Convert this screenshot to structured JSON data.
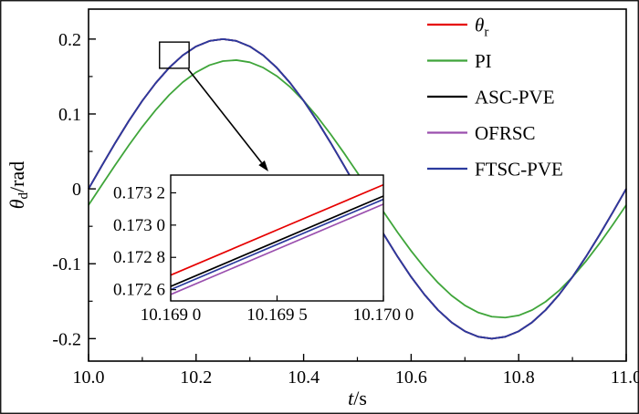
{
  "figure": {
    "background": "#ffffff",
    "border_color": "#000000"
  },
  "axis_labels": {
    "x": {
      "main": "t",
      "rest": "/s"
    },
    "y": {
      "main": "θ",
      "sub": "d",
      "rest": "/rad"
    }
  },
  "legend": {
    "items": [
      {
        "main": "θ",
        "sub": "r",
        "color": "#e60000"
      },
      {
        "main": "PI",
        "sub": "",
        "color": "#3fa53a"
      },
      {
        "main": "ASC-PVE",
        "sub": "",
        "color": "#000000"
      },
      {
        "main": "OFRSC",
        "sub": "",
        "color": "#9a4fae"
      },
      {
        "main": "FTSC-PVE",
        "sub": "",
        "color": "#2b3a9e"
      }
    ]
  },
  "chart_data": {
    "type": "line",
    "title": "",
    "xlabel": "t/s",
    "ylabel": "θd/rad",
    "xlim": [
      10.0,
      11.0
    ],
    "ylim": [
      -0.23,
      0.24
    ],
    "grid": false,
    "legend_position": "upper-right",
    "x_tick_values": [
      10.0,
      10.2,
      10.4,
      10.6,
      10.8,
      11.0
    ],
    "x_tick_labels": [
      "10.0",
      "10.2",
      "10.4",
      "10.6",
      "10.8",
      "11.0"
    ],
    "x_minor_ticks": [
      10.1,
      10.3,
      10.5,
      10.7,
      10.9
    ],
    "y_tick_values": [
      0.2,
      0.1,
      0,
      -0.1,
      -0.2
    ],
    "y_tick_labels": [
      "0.2",
      "0.1",
      "0",
      "-0.1",
      "-0.2"
    ],
    "y_minor_ticks": [
      0.15,
      0.05,
      -0.05,
      -0.15
    ],
    "x": [
      10.0,
      10.025,
      10.05,
      10.075,
      10.1,
      10.125,
      10.15,
      10.175,
      10.2,
      10.225,
      10.25,
      10.275,
      10.3,
      10.325,
      10.35,
      10.375,
      10.4,
      10.425,
      10.45,
      10.475,
      10.5,
      10.525,
      10.55,
      10.575,
      10.6,
      10.625,
      10.65,
      10.675,
      10.7,
      10.725,
      10.75,
      10.775,
      10.8,
      10.825,
      10.85,
      10.875,
      10.9,
      10.925,
      10.95,
      10.975,
      11.0
    ],
    "series": [
      {
        "name": "θr",
        "color": "#e60000",
        "width": 1.8,
        "values": [
          0,
          0.0313,
          0.0618,
          0.0908,
          0.1176,
          0.1414,
          0.1618,
          0.1782,
          0.1902,
          0.1975,
          0.2,
          0.1975,
          0.1902,
          0.1782,
          0.1618,
          0.1414,
          0.1176,
          0.0908,
          0.0618,
          0.0313,
          0,
          -0.0313,
          -0.0618,
          -0.0908,
          -0.1176,
          -0.1414,
          -0.1618,
          -0.1782,
          -0.1902,
          -0.1975,
          -0.2,
          -0.1975,
          -0.1902,
          -0.1782,
          -0.1618,
          -0.1414,
          -0.1176,
          -0.0908,
          -0.0618,
          -0.0313,
          0
        ]
      },
      {
        "name": "PI",
        "color": "#3fa53a",
        "width": 1.8,
        "values": [
          -0.0216,
          0.0054,
          0.0322,
          0.0583,
          0.0829,
          0.1054,
          0.1254,
          0.1423,
          0.1556,
          0.1652,
          0.1706,
          0.1719,
          0.169,
          0.1618,
          0.1507,
          0.1359,
          0.1177,
          0.0967,
          0.0732,
          0.048,
          0.0216,
          -0.0054,
          -0.0322,
          -0.0583,
          -0.0829,
          -0.1054,
          -0.1254,
          -0.1423,
          -0.1556,
          -0.1652,
          -0.1706,
          -0.1719,
          -0.169,
          -0.1618,
          -0.1507,
          -0.1359,
          -0.1177,
          -0.0967,
          -0.0732,
          -0.048,
          -0.0216
        ]
      },
      {
        "name": "ASC-PVE",
        "color": "#000000",
        "width": 1.8,
        "values": [
          0,
          0.0313,
          0.0618,
          0.0908,
          0.1176,
          0.1414,
          0.1618,
          0.1782,
          0.1902,
          0.1975,
          0.2,
          0.1975,
          0.1902,
          0.1782,
          0.1618,
          0.1414,
          0.1176,
          0.0908,
          0.0618,
          0.0313,
          0,
          -0.0313,
          -0.0618,
          -0.0908,
          -0.1176,
          -0.1414,
          -0.1618,
          -0.1782,
          -0.1902,
          -0.1975,
          -0.2,
          -0.1975,
          -0.1902,
          -0.1782,
          -0.1618,
          -0.1414,
          -0.1176,
          -0.0908,
          -0.0618,
          -0.0313,
          0
        ]
      },
      {
        "name": "OFRSC",
        "color": "#9a4fae",
        "width": 1.8,
        "values": [
          0,
          0.0313,
          0.0618,
          0.0908,
          0.1176,
          0.1414,
          0.1618,
          0.1782,
          0.1902,
          0.1975,
          0.2,
          0.1975,
          0.1902,
          0.1782,
          0.1618,
          0.1414,
          0.1176,
          0.0908,
          0.0618,
          0.0313,
          0,
          -0.0313,
          -0.0618,
          -0.0908,
          -0.1176,
          -0.1414,
          -0.1618,
          -0.1782,
          -0.1902,
          -0.1975,
          -0.2,
          -0.1975,
          -0.1902,
          -0.1782,
          -0.1618,
          -0.1414,
          -0.1176,
          -0.0908,
          -0.0618,
          -0.0313,
          0
        ]
      },
      {
        "name": "FTSC-PVE",
        "color": "#2b3a9e",
        "width": 1.8,
        "values": [
          0,
          0.0313,
          0.0618,
          0.0908,
          0.1176,
          0.1414,
          0.1618,
          0.1782,
          0.1902,
          0.1975,
          0.2,
          0.1975,
          0.1902,
          0.1782,
          0.1618,
          0.1414,
          0.1176,
          0.0908,
          0.0618,
          0.0313,
          0,
          -0.0313,
          -0.0618,
          -0.0908,
          -0.1176,
          -0.1414,
          -0.1618,
          -0.1782,
          -0.1902,
          -0.1975,
          -0.2,
          -0.1975,
          -0.1902,
          -0.1782,
          -0.1618,
          -0.1414,
          -0.1176,
          -0.0908,
          -0.0618,
          -0.0313,
          0
        ]
      }
    ],
    "zoom_rect": {
      "x0": 10.132,
      "x1": 10.187,
      "y0": 0.161,
      "y1": 0.196
    },
    "inset": {
      "xlim": [
        10.169,
        10.17
      ],
      "ylim": [
        0.17253,
        0.17331
      ],
      "x_tick_values": [
        10.169,
        10.1695,
        10.17
      ],
      "x_tick_labels": [
        "10.169 0",
        "10.169 5",
        "10.170 0"
      ],
      "y_tick_values": [
        0.1726,
        0.1728,
        0.173,
        0.1732
      ],
      "y_tick_labels": [
        "0.172 6",
        "0.172 8",
        "0.173 0",
        "0.173 2"
      ],
      "x": [
        10.169,
        10.1695,
        10.17
      ],
      "series": [
        {
          "name": "OFRSC",
          "color": "#9a4fae",
          "values": [
            0.17257,
            0.17285,
            0.17313
          ]
        },
        {
          "name": "FTSC-PVE",
          "color": "#2b3a9e",
          "values": [
            0.1726,
            0.17288,
            0.17316
          ]
        },
        {
          "name": "ASC-PVE",
          "color": "#000000",
          "values": [
            0.17262,
            0.1729,
            0.17318
          ]
        },
        {
          "name": "θr",
          "color": "#e60000",
          "values": [
            0.17269,
            0.17297,
            0.17325
          ]
        }
      ]
    }
  }
}
